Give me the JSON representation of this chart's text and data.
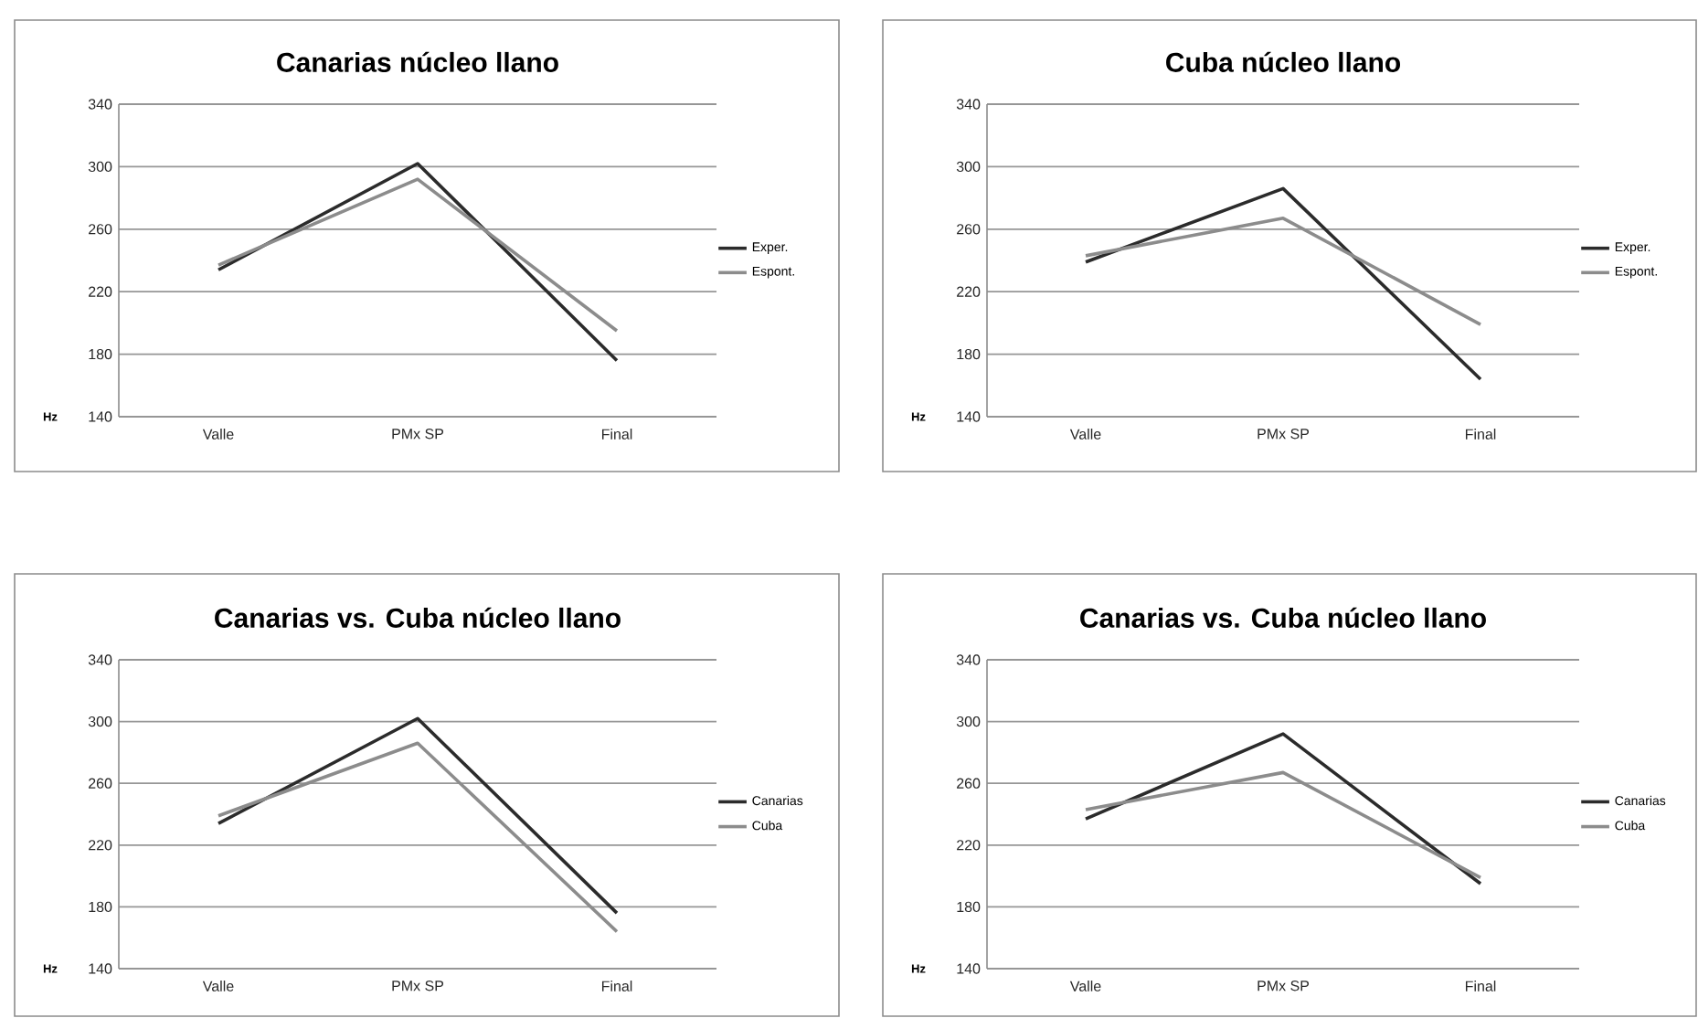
{
  "chart_data": [
    {
      "type": "line",
      "title": "Canarias núcleo llano",
      "ylabel": "Hz",
      "categories": [
        "Valle",
        "PMx SP",
        "Final"
      ],
      "ylim": [
        140,
        340
      ],
      "yticks": [
        140,
        180,
        220,
        260,
        300,
        340
      ],
      "grid": "y",
      "legend": "right",
      "series": [
        {
          "name": "Exper.",
          "color": "#2b2b2b",
          "values": [
            234,
            302,
            176
          ]
        },
        {
          "name": "Espont.",
          "color": "#8c8c8c",
          "values": [
            237,
            292,
            195
          ]
        }
      ]
    },
    {
      "type": "line",
      "title": "Cuba núcleo llano",
      "ylabel": "Hz",
      "categories": [
        "Valle",
        "PMx SP",
        "Final"
      ],
      "ylim": [
        140,
        340
      ],
      "yticks": [
        140,
        180,
        220,
        260,
        300,
        340
      ],
      "grid": "y",
      "legend": "right",
      "series": [
        {
          "name": "Exper.",
          "color": "#2b2b2b",
          "values": [
            239,
            286,
            164
          ]
        },
        {
          "name": "Espont.",
          "color": "#8c8c8c",
          "values": [
            243,
            267,
            199
          ]
        }
      ]
    },
    {
      "type": "line",
      "title": "Canarias vs. Cuba núcleo llano",
      "ylabel": "Hz",
      "categories": [
        "Valle",
        "PMx SP",
        "Final"
      ],
      "ylim": [
        140,
        340
      ],
      "yticks": [
        140,
        180,
        220,
        260,
        300,
        340
      ],
      "grid": "y",
      "legend": "right",
      "series": [
        {
          "name": "Canarias",
          "color": "#2b2b2b",
          "values": [
            234,
            302,
            176
          ]
        },
        {
          "name": "Cuba",
          "color": "#8c8c8c",
          "values": [
            239,
            286,
            164
          ]
        }
      ]
    },
    {
      "type": "line",
      "title": "Canarias vs. Cuba núcleo llano",
      "ylabel": "Hz",
      "categories": [
        "Valle",
        "PMx SP",
        "Final"
      ],
      "ylim": [
        140,
        340
      ],
      "yticks": [
        140,
        180,
        220,
        260,
        300,
        340
      ],
      "grid": "y",
      "legend": "right",
      "series": [
        {
          "name": "Canarias",
          "color": "#2b2b2b",
          "values": [
            237,
            292,
            195
          ]
        },
        {
          "name": "Cuba",
          "color": "#8c8c8c",
          "values": [
            243,
            267,
            199
          ]
        }
      ]
    }
  ]
}
